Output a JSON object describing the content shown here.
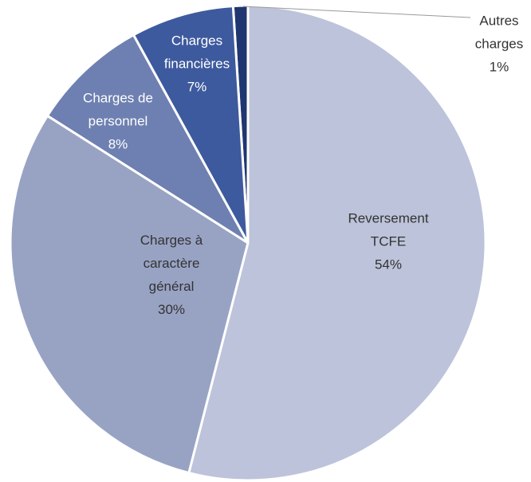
{
  "chart_data": {
    "type": "pie",
    "categories": [
      "Reversement\nTCFE",
      "Charges à\ncaractère\ngénéral",
      "Charges de\npersonnel",
      "Charges\nfinancières",
      "Autres\ncharges"
    ],
    "values": [
      54,
      30,
      8,
      7,
      1
    ],
    "value_labels": [
      "54%",
      "30%",
      "8%",
      "7%",
      "1%"
    ],
    "colors": [
      "#bcc3da",
      "#98a3c4",
      "#6e80b1",
      "#3e5a9e",
      "#1f3670"
    ]
  }
}
